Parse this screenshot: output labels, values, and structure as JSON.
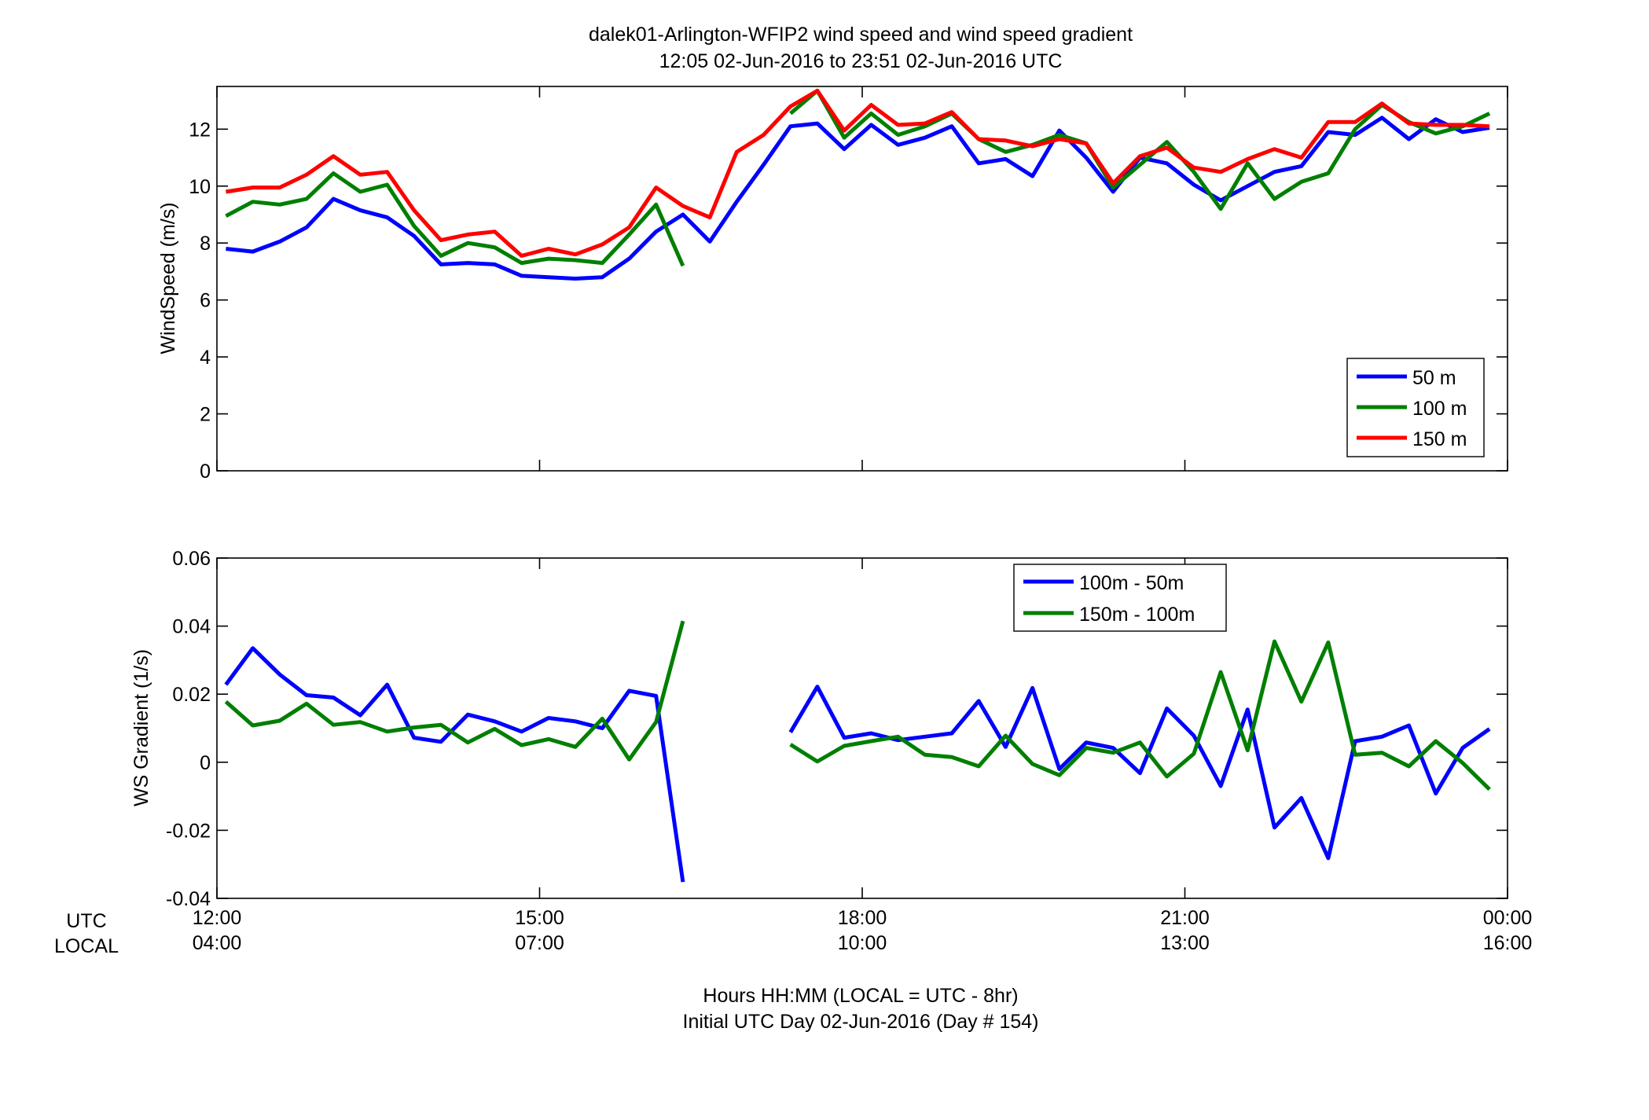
{
  "title_line1": "dalek01-Arlington-WFIP2  wind speed and wind speed gradient",
  "title_line2": "12:05 02-Jun-2016 to 23:51 02-Jun-2016  UTC",
  "xlabel_line1": "Hours HH:MM  (LOCAL = UTC - 8hr)",
  "xlabel_line2": "Initial UTC Day 02-Jun-2016 (Day # 154)",
  "row_labels": {
    "utc": "UTC",
    "local": "LOCAL"
  },
  "x_ticks": [
    {
      "h": 12,
      "utc": "12:00",
      "local": "04:00"
    },
    {
      "h": 15,
      "utc": "15:00",
      "local": "07:00"
    },
    {
      "h": 18,
      "utc": "18:00",
      "local": "10:00"
    },
    {
      "h": 21,
      "utc": "21:00",
      "local": "13:00"
    },
    {
      "h": 24,
      "utc": "00:00",
      "local": "16:00"
    }
  ],
  "colors": {
    "blue": "#0000ff",
    "green": "#007f00",
    "red": "#ff0000"
  },
  "chart_data": [
    {
      "type": "line",
      "ylabel": "WindSpeed (m/s)",
      "xlim": [
        12,
        24
      ],
      "ylim": [
        0,
        13.5
      ],
      "yticks": [
        0,
        2,
        4,
        6,
        8,
        10,
        12
      ],
      "legend_position": "bottom-right",
      "grid": false,
      "x": [
        12.083,
        12.333,
        12.583,
        12.833,
        13.083,
        13.333,
        13.583,
        13.833,
        14.083,
        14.333,
        14.583,
        14.833,
        15.083,
        15.333,
        15.583,
        15.833,
        16.083,
        16.333,
        16.583,
        16.833,
        17.083,
        17.333,
        17.583,
        17.833,
        18.083,
        18.333,
        18.583,
        18.833,
        19.083,
        19.333,
        19.583,
        19.833,
        20.083,
        20.333,
        20.583,
        20.833,
        21.083,
        21.333,
        21.583,
        21.833,
        22.083,
        22.333,
        22.583,
        22.833,
        23.083,
        23.333,
        23.583,
        23.833
      ],
      "series": [
        {
          "name": "50 m",
          "color": "#0000ff",
          "values": [
            7.8,
            7.7,
            8.05,
            8.55,
            9.55,
            9.15,
            8.9,
            8.25,
            7.25,
            7.3,
            7.25,
            6.85,
            6.8,
            6.75,
            6.8,
            7.45,
            8.4,
            9.0,
            8.05,
            9.45,
            10.75,
            12.1,
            12.2,
            11.3,
            12.15,
            11.45,
            11.7,
            12.1,
            10.8,
            10.95,
            10.35,
            11.95,
            11.0,
            9.8,
            11.0,
            10.8,
            10.05,
            9.5,
            10.0,
            10.5,
            10.7,
            11.9,
            11.8,
            12.4,
            11.65,
            12.35,
            11.9,
            12.05
          ]
        },
        {
          "name": "100 m",
          "color": "#007f00",
          "values": [
            8.95,
            9.45,
            9.35,
            9.55,
            10.45,
            9.8,
            10.05,
            8.6,
            7.55,
            8.0,
            7.85,
            7.3,
            7.45,
            7.4,
            7.3,
            8.3,
            9.35,
            7.2,
            null,
            null,
            null,
            12.55,
            13.35,
            11.7,
            12.55,
            11.8,
            12.1,
            12.55,
            11.65,
            11.2,
            11.45,
            11.8,
            11.5,
            9.95,
            10.75,
            11.55,
            10.5,
            9.2,
            10.8,
            9.55,
            10.15,
            10.45,
            12.0,
            12.85,
            12.25,
            11.85,
            12.1,
            12.55
          ]
        },
        {
          "name": "150 m",
          "color": "#ff0000",
          "values": [
            9.8,
            9.95,
            9.95,
            10.4,
            11.05,
            10.4,
            10.5,
            9.15,
            8.1,
            8.3,
            8.4,
            7.55,
            7.8,
            7.6,
            7.95,
            8.55,
            9.95,
            9.3,
            8.9,
            11.2,
            11.8,
            12.8,
            13.35,
            11.95,
            12.85,
            12.15,
            12.2,
            12.6,
            11.65,
            11.6,
            11.4,
            11.65,
            11.5,
            10.1,
            11.05,
            11.35,
            10.65,
            10.5,
            10.95,
            11.3,
            11.0,
            12.25,
            12.25,
            12.9,
            12.2,
            12.15,
            12.15,
            12.1
          ]
        }
      ]
    },
    {
      "type": "line",
      "ylabel": "WS Gradient (1/s)",
      "xlim": [
        12,
        24
      ],
      "ylim": [
        -0.04,
        0.06
      ],
      "yticks": [
        -0.04,
        -0.02,
        0,
        0.02,
        0.04,
        0.06
      ],
      "legend_position": "top-center",
      "grid": false,
      "x": [
        12.083,
        12.333,
        12.583,
        12.833,
        13.083,
        13.333,
        13.583,
        13.833,
        14.083,
        14.333,
        14.583,
        14.833,
        15.083,
        15.333,
        15.583,
        15.833,
        16.083,
        16.333,
        16.583,
        16.833,
        17.083,
        17.333,
        17.583,
        17.833,
        18.083,
        18.333,
        18.583,
        18.833,
        19.083,
        19.333,
        19.583,
        19.833,
        20.083,
        20.333,
        20.583,
        20.833,
        21.083,
        21.333,
        21.583,
        21.833,
        22.083,
        22.333,
        22.583,
        22.833,
        23.083,
        23.333,
        23.583,
        23.833
      ],
      "series": [
        {
          "name": "100m - 50m",
          "color": "#0000ff",
          "values": [
            0.0228,
            0.0335,
            0.0258,
            0.0197,
            0.019,
            0.0138,
            0.0228,
            0.0072,
            0.006,
            0.014,
            0.012,
            0.009,
            0.013,
            0.012,
            0.01,
            0.021,
            0.0195,
            -0.0352,
            null,
            null,
            null,
            0.0088,
            0.0222,
            0.0072,
            0.0085,
            0.0065,
            0.0075,
            0.0085,
            0.018,
            0.0045,
            0.0218,
            -0.002,
            0.0058,
            0.0042,
            -0.0032,
            0.0158,
            0.0078,
            -0.007,
            0.0155,
            -0.0192,
            -0.0105,
            -0.0282,
            0.0062,
            0.0075,
            0.0108,
            -0.0092,
            0.0042,
            0.0098
          ]
        },
        {
          "name": "150m - 100m",
          "color": "#007f00",
          "values": [
            0.0178,
            0.0108,
            0.0122,
            0.0172,
            0.011,
            0.0118,
            0.009,
            0.0102,
            0.011,
            0.0058,
            0.0098,
            0.005,
            0.0068,
            0.0045,
            0.0128,
            0.0008,
            0.0118,
            0.0415,
            null,
            null,
            null,
            0.0052,
            0.0002,
            0.0048,
            0.0062,
            0.0075,
            0.0022,
            0.0015,
            -0.0012,
            0.0078,
            -0.0005,
            -0.0038,
            0.0042,
            0.0028,
            0.0058,
            -0.0042,
            0.0025,
            0.0265,
            0.0035,
            0.0355,
            0.0178,
            0.0352,
            0.0022,
            0.0028,
            -0.0012,
            0.0062,
            -0.0002,
            -0.008
          ]
        }
      ]
    }
  ]
}
